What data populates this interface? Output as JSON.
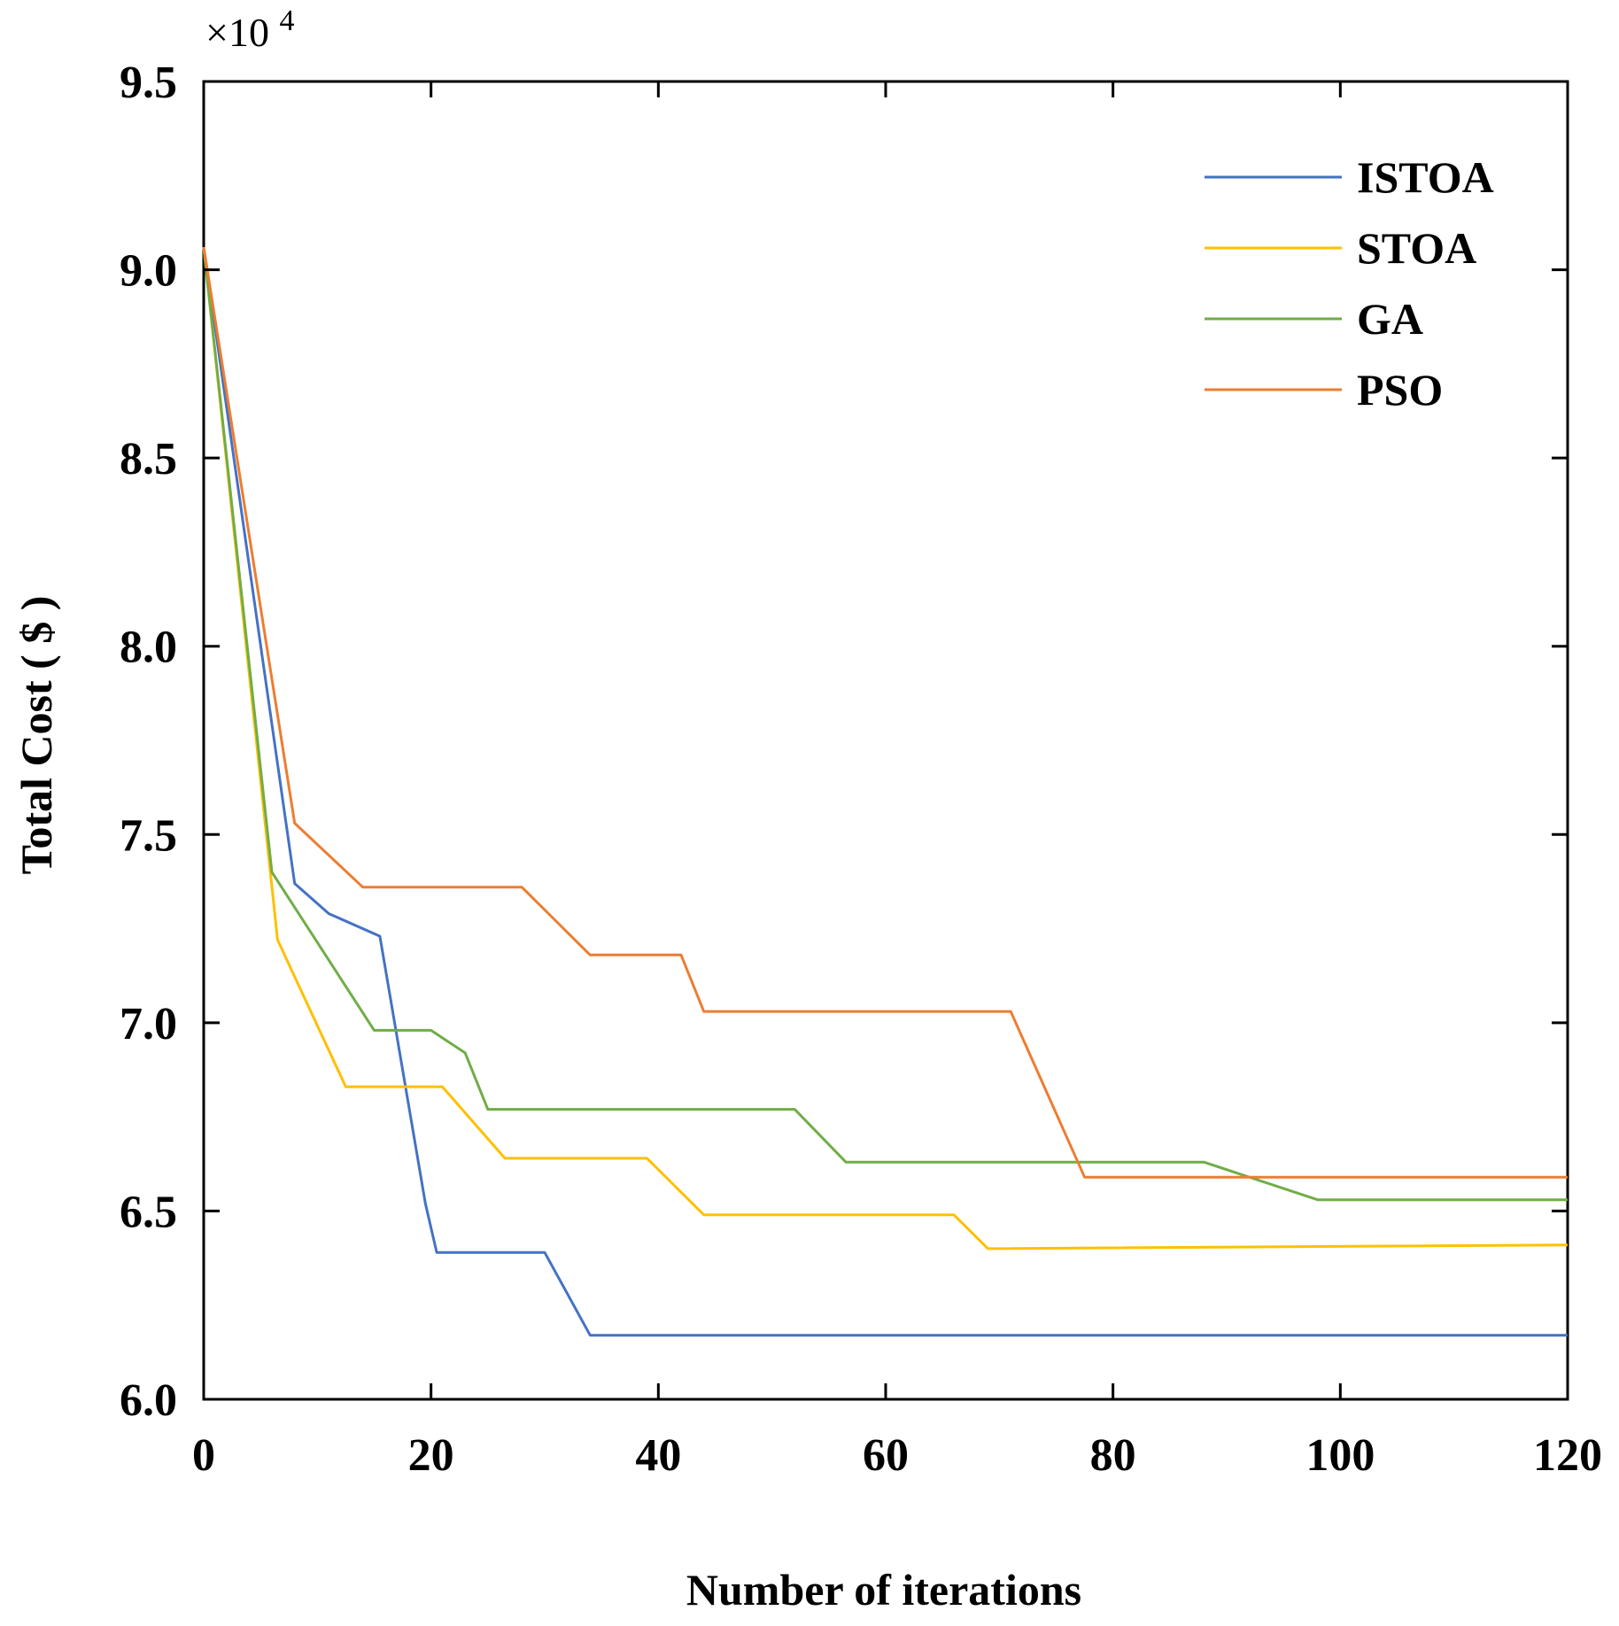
{
  "chart_data": {
    "type": "line",
    "title": "",
    "xlabel": "Number of iterations",
    "ylabel": "Total Cost ( $ )",
    "y_multiplier_label": "×10",
    "y_multiplier_exponent": "4",
    "xlim": [
      0,
      120
    ],
    "ylim": [
      6.0,
      9.5
    ],
    "x_ticks": [
      0,
      20,
      40,
      60,
      80,
      100,
      120
    ],
    "y_ticks": [
      6.0,
      6.5,
      7.0,
      7.5,
      8.0,
      8.5,
      9.0,
      9.5
    ],
    "x_tick_labels": [
      "0",
      "20",
      "40",
      "60",
      "80",
      "100",
      "120"
    ],
    "y_tick_labels": [
      "6.0",
      "6.5",
      "7.0",
      "7.5",
      "8.0",
      "8.5",
      "9.0",
      "9.5"
    ],
    "grid": false,
    "legend_position": "top-right",
    "series": [
      {
        "name": "ISTOA",
        "color": "#4472C4",
        "points": [
          [
            0,
            9.06
          ],
          [
            8,
            7.37
          ],
          [
            11,
            7.29
          ],
          [
            15.5,
            7.23
          ],
          [
            19.5,
            6.52
          ],
          [
            20.5,
            6.39
          ],
          [
            30,
            6.39
          ],
          [
            34,
            6.17
          ],
          [
            120,
            6.17
          ]
        ]
      },
      {
        "name": "STOA",
        "color": "#FFC000",
        "points": [
          [
            0,
            9.06
          ],
          [
            6.5,
            7.22
          ],
          [
            12.5,
            6.83
          ],
          [
            21,
            6.83
          ],
          [
            26.5,
            6.64
          ],
          [
            39,
            6.64
          ],
          [
            44,
            6.49
          ],
          [
            66,
            6.49
          ],
          [
            69,
            6.4
          ],
          [
            120,
            6.41
          ]
        ]
      },
      {
        "name": "GA",
        "color": "#70AD47",
        "points": [
          [
            0,
            9.06
          ],
          [
            6,
            7.4
          ],
          [
            15,
            6.98
          ],
          [
            20,
            6.98
          ],
          [
            23,
            6.92
          ],
          [
            25,
            6.77
          ],
          [
            52,
            6.77
          ],
          [
            56.5,
            6.63
          ],
          [
            88,
            6.63
          ],
          [
            98,
            6.53
          ],
          [
            120,
            6.53
          ]
        ]
      },
      {
        "name": "PSO",
        "color": "#ED7D31",
        "points": [
          [
            0,
            9.06
          ],
          [
            8,
            7.53
          ],
          [
            14,
            7.36
          ],
          [
            28,
            7.36
          ],
          [
            34,
            7.18
          ],
          [
            42,
            7.18
          ],
          [
            44,
            7.03
          ],
          [
            71,
            7.03
          ],
          [
            77.5,
            6.59
          ],
          [
            120,
            6.59
          ]
        ]
      }
    ]
  }
}
